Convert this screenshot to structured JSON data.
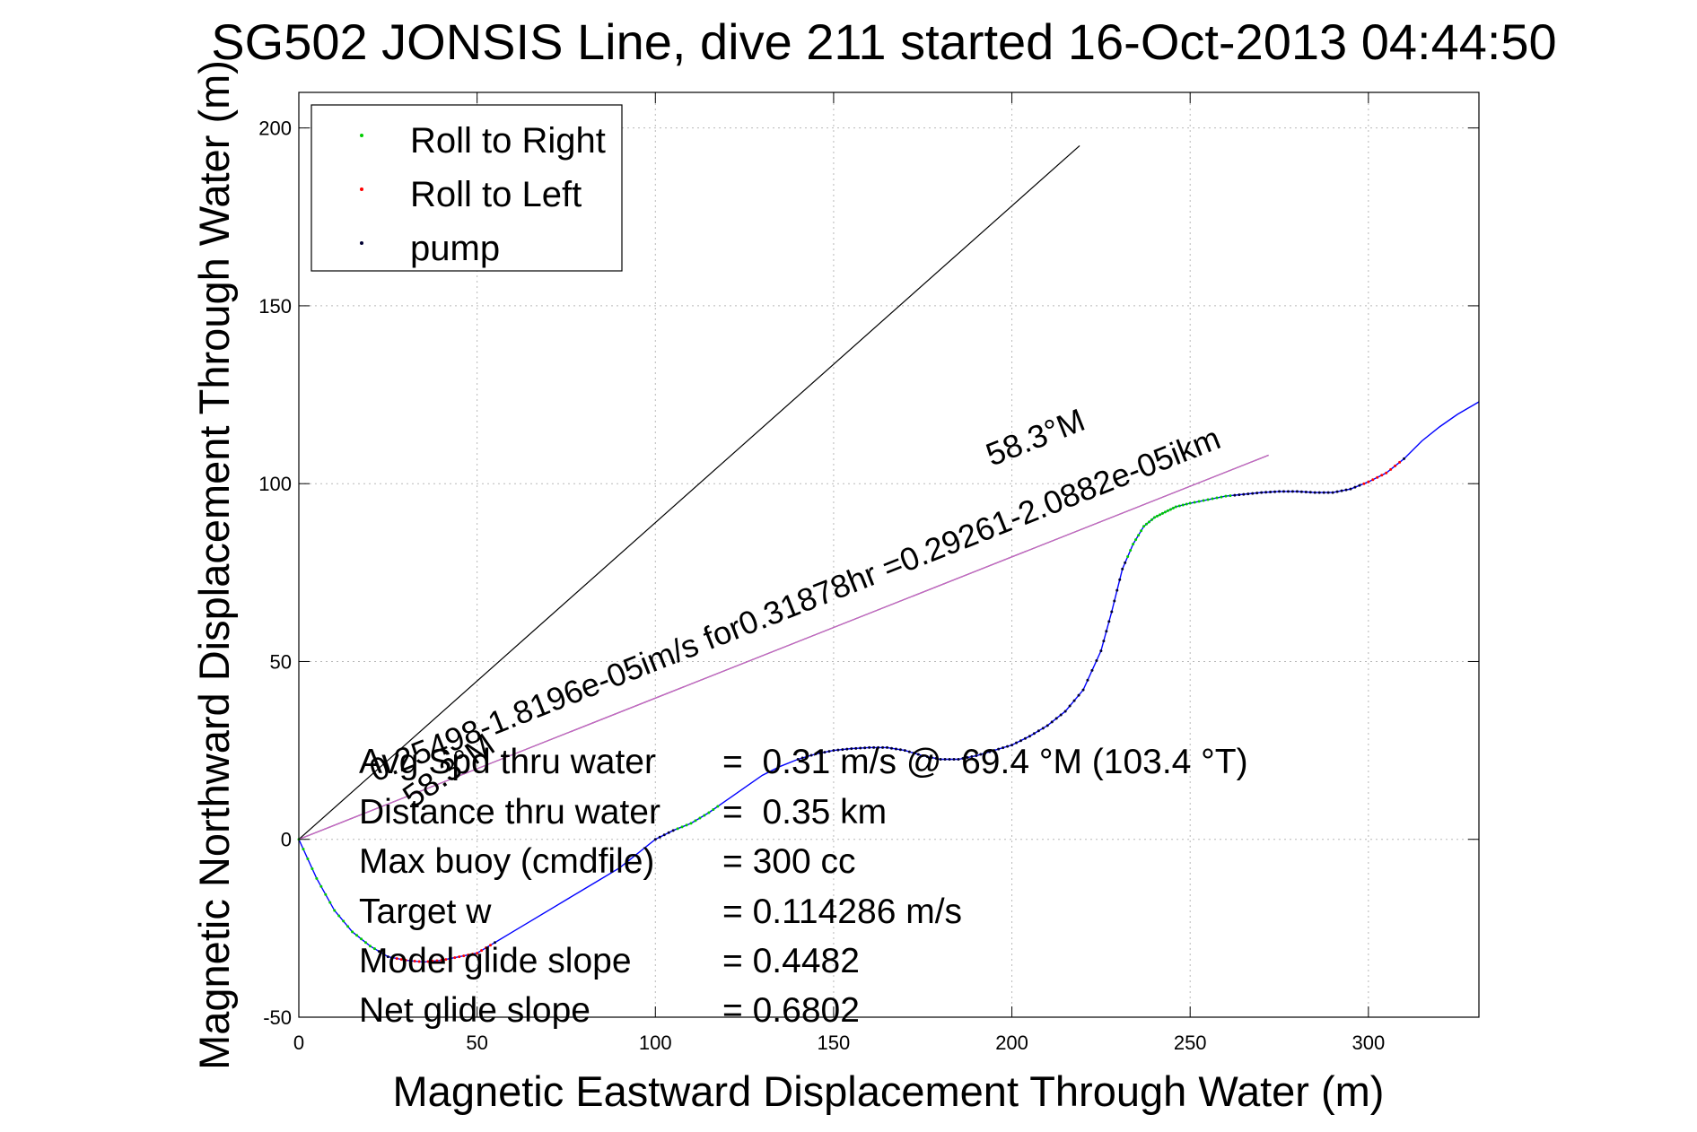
{
  "chart_data": {
    "type": "line",
    "title": "SG502 JONSIS Line, dive 211 started 16-Oct-2013 04:44:50",
    "xlabel": "Magnetic Eastward Displacement Through Water (m)",
    "ylabel": "Magnetic Northward Displacement Through Water (m)",
    "xlim": [
      0,
      331
    ],
    "ylim": [
      -50,
      210
    ],
    "xticks": [
      0,
      50,
      100,
      150,
      200,
      250,
      300
    ],
    "yticks": [
      -50,
      0,
      50,
      100,
      150,
      200
    ],
    "grid": true,
    "legend_position": "top-left",
    "legend": [
      {
        "label": "Roll to Right",
        "color": "#00cc00"
      },
      {
        "label": "Roll to Left",
        "color": "#ff0000"
      },
      {
        "label": "pump",
        "color": "#000033"
      }
    ],
    "track": {
      "color": "#0000ff",
      "x": [
        0,
        5,
        10,
        15,
        20,
        25,
        30,
        35,
        40,
        45,
        50,
        55,
        60,
        65,
        70,
        75,
        80,
        85,
        90,
        95,
        100,
        105,
        110,
        115,
        120,
        125,
        130,
        135,
        140,
        145,
        150,
        155,
        160,
        165,
        170,
        175,
        180,
        185,
        190,
        195,
        200,
        205,
        210,
        215,
        220,
        225,
        228,
        231,
        234,
        237,
        240,
        243,
        246,
        250,
        255,
        260,
        265,
        270,
        275,
        280,
        285,
        290,
        295,
        300,
        305,
        310,
        315,
        320,
        325,
        331
      ],
      "y": [
        0,
        -11,
        -20,
        -26,
        -30,
        -33,
        -34,
        -34.5,
        -34,
        -33,
        -32,
        -29,
        -26,
        -23,
        -20,
        -17,
        -14,
        -11,
        -8,
        -4,
        0,
        2.5,
        4.5,
        7.5,
        11,
        14.5,
        18,
        20.5,
        22.5,
        24,
        25,
        25.5,
        25.8,
        25.8,
        25,
        23.5,
        22.5,
        22.5,
        23.5,
        25,
        26.5,
        29,
        32,
        36,
        42,
        53,
        64,
        76,
        83,
        88,
        90.5,
        92,
        93.5,
        94.5,
        95.5,
        96.5,
        97,
        97.5,
        97.8,
        97.8,
        97.5,
        97.5,
        98.5,
        100.5,
        103,
        107,
        112,
        116,
        119.5,
        123
      ]
    },
    "reference_lines": [
      {
        "x": [
          0,
          219
        ],
        "y": [
          0,
          195
        ]
      },
      {
        "x": [
          0,
          272
        ],
        "y": [
          0,
          108
        ]
      }
    ],
    "heading_line": {
      "color": "#cc66cc",
      "x": [
        0,
        272
      ],
      "y": [
        0,
        108
      ]
    },
    "annotations": [
      {
        "text": "0.25498-1.8196e-05i m/s for 0.31878 hr = 0.29261-2.0882e-05i km",
        "raw": "0.25498-1.8196e-05im/s for0.31878hr =0.29261-2.0882e-05ikm",
        "angle_deg": -21.6
      },
      {
        "text": "58.3°M",
        "angle_deg": -21.6
      },
      {
        "text": "58.3°M",
        "angle_deg": -35
      }
    ]
  },
  "annotation_texts": {
    "main_label": "0.25498-1.8196e-05im/s for0.31878hr =0.29261-2.0882e-05ikm",
    "heading_upper": "58.3°M",
    "heading_lower": "58.3°M"
  },
  "stats": [
    {
      "label": "Avg Spd thru water",
      "value": "=  0.31 m/s @  69.4 °M (103.4 °T)"
    },
    {
      "label": "Distance thru water",
      "value": "=  0.35 km"
    },
    {
      "label": "Max buoy (cmdfile)",
      "value": "= 300 cc"
    },
    {
      "label": "Target w",
      "value": "= 0.114286 m/s"
    },
    {
      "label": "Model glide slope",
      "value": "= 0.4482"
    },
    {
      "label": "Net glide slope",
      "value": "= 0.6802"
    }
  ],
  "colors": {
    "track": "#0000ff",
    "roll_right": "#00cc00",
    "roll_left": "#ff0000",
    "pump": "#000033",
    "heading_line": "#cc66cc",
    "reference_lines": "#000000"
  }
}
